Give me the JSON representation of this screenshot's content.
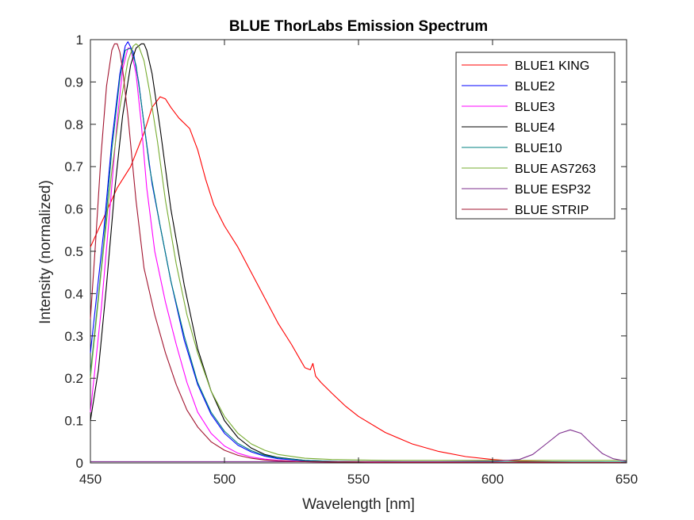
{
  "chart_data": {
    "type": "line",
    "title": "BLUE ThorLabs Emission Spectrum",
    "xlabel": "Wavelength [nm]",
    "ylabel": "Intensity (normalized)",
    "xlim": [
      450,
      650
    ],
    "ylim": [
      0,
      1
    ],
    "xticks": [
      450,
      500,
      550,
      600,
      650
    ],
    "yticks": [
      0,
      0.1,
      0.2,
      0.3,
      0.4,
      0.5,
      0.6,
      0.7,
      0.8,
      0.9,
      1
    ],
    "xtick_labels": [
      "450",
      "500",
      "550",
      "600",
      "650"
    ],
    "ytick_labels": [
      "0",
      "0.1",
      "0.2",
      "0.3",
      "0.4",
      "0.5",
      "0.6",
      "0.7",
      "0.8",
      "0.9",
      "1"
    ],
    "grid": false,
    "legend_position": "top-right",
    "series": [
      {
        "name": "BLUE1 KING",
        "color": "#ff0000",
        "x": [
          450,
          455,
          460,
          465,
          470,
          473,
          476,
          478,
          480,
          483,
          487,
          490,
          493,
          496,
          500,
          505,
          510,
          515,
          520,
          525,
          530,
          532,
          533,
          534,
          536,
          540,
          545,
          550,
          560,
          570,
          580,
          590,
          600,
          610,
          620,
          630,
          640,
          650
        ],
        "y": [
          0.51,
          0.58,
          0.65,
          0.7,
          0.78,
          0.84,
          0.865,
          0.86,
          0.84,
          0.815,
          0.79,
          0.74,
          0.67,
          0.61,
          0.56,
          0.51,
          0.45,
          0.39,
          0.33,
          0.28,
          0.225,
          0.22,
          0.235,
          0.205,
          0.19,
          0.165,
          0.135,
          0.11,
          0.072,
          0.045,
          0.027,
          0.015,
          0.008,
          0.004,
          0.003,
          0.002,
          0.002,
          0.001
        ]
      },
      {
        "name": "BLUE2",
        "color": "#0000ff",
        "x": [
          450,
          455,
          458,
          461,
          463,
          464,
          466,
          468,
          470,
          473,
          476,
          480,
          485,
          490,
          495,
          500,
          505,
          510,
          515,
          520,
          530,
          540,
          550,
          560,
          580,
          600,
          625,
          650
        ],
        "y": [
          0.26,
          0.55,
          0.76,
          0.92,
          0.985,
          0.995,
          0.97,
          0.9,
          0.8,
          0.66,
          0.56,
          0.43,
          0.29,
          0.185,
          0.115,
          0.07,
          0.042,
          0.026,
          0.016,
          0.01,
          0.005,
          0.003,
          0.002,
          0.002,
          0.001,
          0.001,
          0.001,
          0.001
        ]
      },
      {
        "name": "BLUE3",
        "color": "#ff00ff",
        "x": [
          450,
          454,
          457,
          460,
          462,
          464,
          465,
          467,
          469,
          471,
          474,
          478,
          482,
          486,
          490,
          495,
          500,
          505,
          510,
          515,
          520,
          530,
          540,
          550,
          560,
          580,
          600,
          625,
          650
        ],
        "y": [
          0.12,
          0.36,
          0.58,
          0.81,
          0.93,
          0.98,
          0.98,
          0.92,
          0.8,
          0.65,
          0.5,
          0.38,
          0.28,
          0.19,
          0.12,
          0.07,
          0.04,
          0.023,
          0.014,
          0.009,
          0.006,
          0.003,
          0.002,
          0.002,
          0.001,
          0.001,
          0.001,
          0.001,
          0.001
        ]
      },
      {
        "name": "BLUE4",
        "color": "#000000",
        "x": [
          450,
          453,
          456,
          459,
          462,
          465,
          467,
          469,
          470,
          471,
          473,
          476,
          480,
          485,
          490,
          495,
          500,
          505,
          510,
          515,
          520,
          530,
          540,
          550,
          560,
          580,
          600,
          625,
          650
        ],
        "y": [
          0.1,
          0.22,
          0.42,
          0.64,
          0.82,
          0.94,
          0.98,
          0.99,
          0.99,
          0.975,
          0.92,
          0.79,
          0.6,
          0.42,
          0.27,
          0.17,
          0.1,
          0.06,
          0.035,
          0.02,
          0.013,
          0.006,
          0.004,
          0.003,
          0.003,
          0.002,
          0.002,
          0.002,
          0.002
        ]
      },
      {
        "name": "BLUE10",
        "color": "#008080",
        "x": [
          450,
          455,
          458,
          461,
          463,
          465,
          467,
          469,
          472,
          476,
          480,
          485,
          490,
          495,
          500,
          505,
          510,
          515,
          520,
          530,
          540,
          550,
          560,
          580,
          600,
          625,
          650
        ],
        "y": [
          0.21,
          0.52,
          0.74,
          0.91,
          0.975,
          0.98,
          0.94,
          0.85,
          0.7,
          0.56,
          0.43,
          0.3,
          0.19,
          0.12,
          0.075,
          0.046,
          0.029,
          0.018,
          0.012,
          0.006,
          0.004,
          0.003,
          0.002,
          0.002,
          0.002,
          0.002,
          0.002
        ]
      },
      {
        "name": "BLUE AS7263",
        "color": "#77ac30",
        "x": [
          450,
          454,
          458,
          461,
          464,
          466,
          467,
          468,
          470,
          472,
          475,
          478,
          482,
          486,
          490,
          495,
          500,
          505,
          510,
          515,
          520,
          530,
          540,
          550,
          560,
          580,
          600,
          625,
          650
        ],
        "y": [
          0.2,
          0.45,
          0.69,
          0.84,
          0.95,
          0.985,
          0.99,
          0.985,
          0.95,
          0.88,
          0.76,
          0.62,
          0.47,
          0.35,
          0.26,
          0.17,
          0.11,
          0.07,
          0.045,
          0.03,
          0.02,
          0.011,
          0.008,
          0.007,
          0.006,
          0.006,
          0.006,
          0.006,
          0.006
        ]
      },
      {
        "name": "BLUE ESP32",
        "color": "#7e2f8e",
        "x": [
          450,
          500,
          550,
          580,
          600,
          610,
          615,
          620,
          625,
          629,
          633,
          637,
          641,
          645,
          650
        ],
        "y": [
          0.003,
          0.003,
          0.003,
          0.003,
          0.004,
          0.008,
          0.02,
          0.045,
          0.07,
          0.078,
          0.07,
          0.045,
          0.022,
          0.01,
          0.004
        ]
      },
      {
        "name": "BLUE STRIP",
        "color": "#a2142f",
        "x": [
          450,
          452,
          454,
          456,
          458,
          459,
          460,
          461,
          462,
          464,
          467,
          470,
          474,
          478,
          482,
          486,
          490,
          495,
          500,
          505,
          510,
          515,
          520,
          530,
          540,
          550,
          560,
          580,
          600,
          625,
          650
        ],
        "y": [
          0.34,
          0.53,
          0.73,
          0.89,
          0.975,
          0.99,
          0.99,
          0.97,
          0.93,
          0.82,
          0.62,
          0.46,
          0.35,
          0.26,
          0.185,
          0.125,
          0.085,
          0.05,
          0.03,
          0.018,
          0.011,
          0.007,
          0.005,
          0.003,
          0.002,
          0.002,
          0.001,
          0.001,
          0.001,
          0.001,
          0.001
        ]
      }
    ]
  }
}
